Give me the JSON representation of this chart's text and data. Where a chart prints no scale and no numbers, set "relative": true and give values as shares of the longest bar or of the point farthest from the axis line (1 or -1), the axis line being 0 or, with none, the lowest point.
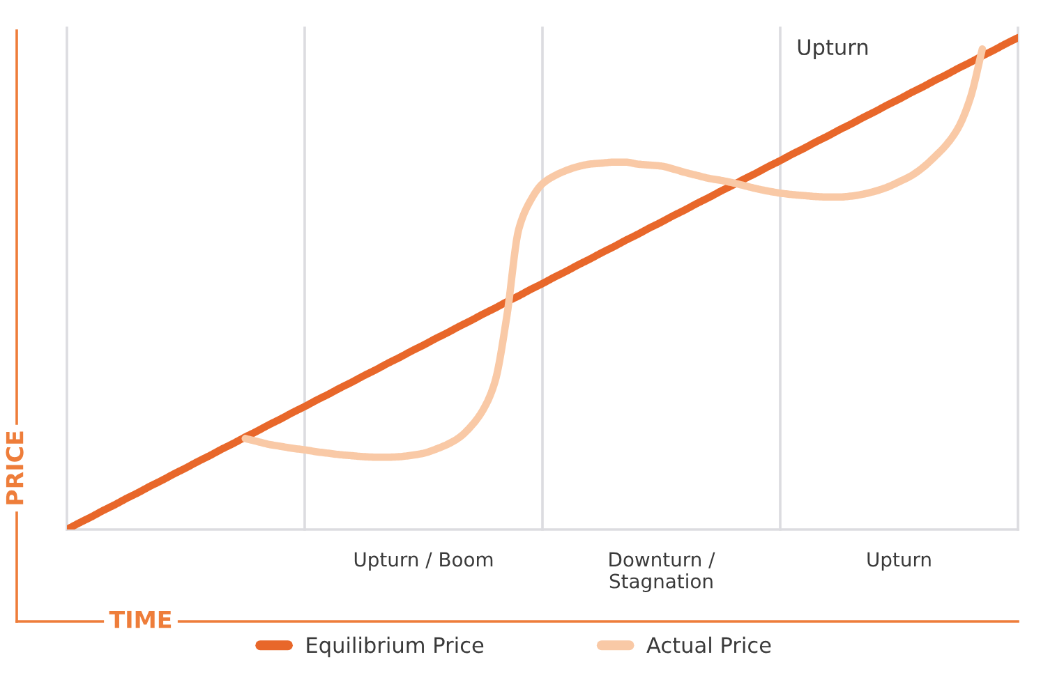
{
  "chart_data": {
    "type": "line",
    "relative": true,
    "xlabel": "TIME",
    "ylabel": "PRICE",
    "tick_labels": "x",
    "legend": "bottom",
    "line_style": "solid",
    "categories": [
      null,
      null,
      null,
      null,
      null,
      null,
      null,
      null,
      null,
      null,
      null,
      null,
      null,
      null,
      null,
      null,
      null,
      null,
      null,
      null,
      null,
      null,
      null,
      null,
      null,
      null,
      null,
      null,
      null,
      null,
      "Upturn / Boom",
      null,
      null,
      null,
      null,
      null,
      null,
      null,
      null,
      null,
      null,
      null,
      null,
      null,
      null,
      null,
      null,
      null,
      null,
      null,
      "Downturn /\nStagnation",
      null,
      null,
      null,
      null,
      null,
      null,
      null,
      null,
      null,
      null,
      null,
      null,
      null,
      null,
      null,
      null,
      null,
      null,
      null,
      "Upturn",
      null,
      null,
      null,
      null,
      null,
      null,
      null,
      null,
      null,
      null
    ],
    "series": [
      {
        "name": "Equilibrium Price",
        "color": "#e8672a",
        "values": [
          0,
          0.013,
          0.025,
          0.038,
          0.05,
          0.063,
          0.075,
          0.088,
          0.1,
          0.113,
          0.125,
          0.138,
          0.15,
          0.163,
          0.175,
          0.188,
          0.2,
          0.213,
          0.225,
          0.238,
          0.25,
          0.263,
          0.275,
          0.288,
          0.3,
          0.313,
          0.325,
          0.338,
          0.35,
          0.363,
          0.375,
          0.388,
          0.4,
          0.413,
          0.425,
          0.438,
          0.45,
          0.463,
          0.475,
          0.488,
          0.5,
          0.513,
          0.525,
          0.538,
          0.55,
          0.563,
          0.575,
          0.588,
          0.6,
          0.613,
          0.625,
          0.638,
          0.65,
          0.663,
          0.675,
          0.688,
          0.7,
          0.713,
          0.725,
          0.738,
          0.75,
          0.763,
          0.775,
          0.788,
          0.8,
          0.813,
          0.825,
          0.838,
          0.85,
          0.863,
          0.875,
          0.888,
          0.9,
          0.913,
          0.925,
          0.938,
          0.95,
          0.963,
          0.975,
          0.988,
          1
        ]
      },
      {
        "name": "Actual Price",
        "color": "#f9c9a6",
        "values": [
          null,
          null,
          null,
          null,
          null,
          null,
          null,
          null,
          null,
          null,
          null,
          null,
          null,
          null,
          null,
          0.185,
          0.179,
          0.173,
          0.169,
          0.165,
          0.162,
          0.158,
          0.155,
          0.152,
          0.15,
          0.148,
          0.147,
          0.147,
          0.148,
          0.151,
          0.155,
          0.163,
          0.173,
          0.187,
          0.21,
          0.243,
          0.3,
          0.433,
          0.61,
          0.669,
          0.703,
          0.719,
          0.73,
          0.738,
          0.743,
          0.745,
          0.747,
          0.747,
          0.743,
          0.741,
          0.739,
          0.733,
          0.726,
          0.72,
          0.714,
          0.71,
          0.705,
          0.699,
          0.693,
          0.688,
          0.684,
          0.681,
          0.679,
          0.677,
          0.676,
          0.676,
          0.678,
          0.682,
          0.688,
          0.696,
          0.707,
          0.719,
          0.736,
          0.758,
          0.783,
          0.818,
          0.878,
          0.977,
          null,
          null,
          null
        ]
      }
    ],
    "annotations": [
      "Upturn"
    ]
  }
}
